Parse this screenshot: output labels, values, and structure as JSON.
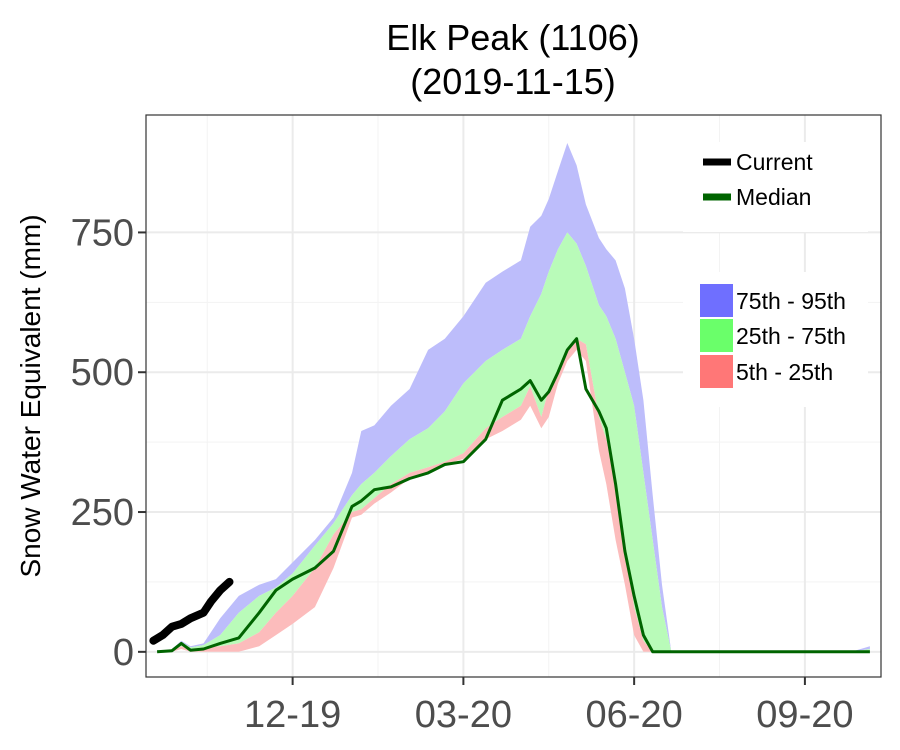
{
  "chart_data": {
    "type": "area",
    "title": "Elk Peak (1106)",
    "subtitle": "(2019-11-15)",
    "ylabel": "Snow Water Equivalent (mm)",
    "xlabel": "",
    "x_start": "2019-10-01",
    "x_end": "2020-10-31",
    "ylim": [
      -45,
      960
    ],
    "yticks": [
      0,
      250,
      500,
      750
    ],
    "xticks": [
      {
        "date": "2019-12-19",
        "label": "12-19"
      },
      {
        "date": "2020-03-20",
        "label": "03-20"
      },
      {
        "date": "2020-06-20",
        "label": "06-20"
      },
      {
        "date": "2020-09-20",
        "label": "09-20"
      }
    ],
    "grid": true,
    "legend": {
      "placement": "top-right",
      "lines": [
        {
          "label": "Current",
          "color": "#000000"
        },
        {
          "label": "Median",
          "color": "#006400"
        }
      ],
      "bands": [
        {
          "label": "75th - 95th",
          "color": "#6f6fff"
        },
        {
          "label": "25th - 75th",
          "color": "#6aff6a"
        },
        {
          "label": "5th - 25th",
          "color": "#ff7777"
        }
      ]
    },
    "colors": {
      "band_75_95": "#bdbdfb",
      "band_25_75": "#b9fbb9",
      "band_5_25": "#fcbcbc",
      "median": "#006400",
      "current": "#000000"
    },
    "x": [
      "2019-10-07",
      "2019-10-15",
      "2019-10-20",
      "2019-10-25",
      "2019-11-01",
      "2019-11-10",
      "2019-11-20",
      "2019-12-01",
      "2019-12-10",
      "2019-12-19",
      "2019-12-31",
      "2020-01-10",
      "2020-01-20",
      "2020-01-25",
      "2020-02-01",
      "2020-02-10",
      "2020-02-20",
      "2020-03-01",
      "2020-03-10",
      "2020-03-20",
      "2020-04-01",
      "2020-04-10",
      "2020-04-20",
      "2020-04-25",
      "2020-05-01",
      "2020-05-05",
      "2020-05-10",
      "2020-05-15",
      "2020-05-20",
      "2020-05-25",
      "2020-06-01",
      "2020-06-05",
      "2020-06-10",
      "2020-06-15",
      "2020-06-20",
      "2020-06-25",
      "2020-06-30",
      "2020-07-05",
      "2020-07-10",
      "2020-07-15",
      "2020-07-20",
      "2020-08-01",
      "2020-09-01",
      "2020-10-01",
      "2020-10-15",
      "2020-10-25"
    ],
    "series": [
      {
        "key": "p95",
        "values": [
          0,
          5,
          20,
          10,
          15,
          60,
          100,
          120,
          130,
          160,
          200,
          240,
          320,
          395,
          405,
          440,
          470,
          540,
          560,
          600,
          660,
          680,
          700,
          760,
          780,
          810,
          860,
          910,
          870,
          800,
          740,
          720,
          700,
          650,
          560,
          450,
          280,
          120,
          0,
          0,
          0,
          0,
          0,
          0,
          0,
          10
        ]
      },
      {
        "key": "p75",
        "values": [
          0,
          5,
          18,
          8,
          12,
          30,
          70,
          100,
          115,
          140,
          190,
          230,
          280,
          300,
          320,
          350,
          380,
          400,
          430,
          480,
          520,
          540,
          560,
          600,
          640,
          680,
          720,
          750,
          730,
          690,
          620,
          600,
          560,
          500,
          440,
          320,
          200,
          80,
          0,
          0,
          0,
          0,
          0,
          0,
          0,
          5
        ]
      },
      {
        "key": "p25",
        "values": [
          0,
          2,
          10,
          5,
          8,
          10,
          15,
          35,
          70,
          100,
          150,
          210,
          250,
          255,
          275,
          300,
          320,
          330,
          340,
          355,
          400,
          420,
          440,
          475,
          420,
          470,
          500,
          540,
          560,
          550,
          420,
          380,
          300,
          200,
          80,
          20,
          0,
          0,
          0,
          0,
          0,
          0,
          0,
          0,
          0,
          0
        ]
      },
      {
        "key": "p5",
        "values": [
          0,
          0,
          5,
          0,
          0,
          0,
          0,
          10,
          30,
          50,
          80,
          150,
          240,
          245,
          265,
          285,
          310,
          320,
          335,
          345,
          380,
          395,
          415,
          440,
          400,
          420,
          480,
          520,
          540,
          520,
          360,
          300,
          200,
          120,
          30,
          0,
          0,
          0,
          0,
          0,
          0,
          0,
          0,
          0,
          0,
          0
        ]
      },
      {
        "name": "Median",
        "key": "median",
        "values": [
          0,
          2,
          15,
          3,
          5,
          15,
          25,
          70,
          110,
          130,
          150,
          180,
          260,
          270,
          290,
          295,
          310,
          320,
          335,
          340,
          380,
          450,
          470,
          485,
          450,
          465,
          500,
          540,
          560,
          470,
          430,
          400,
          300,
          180,
          100,
          30,
          0,
          0,
          0,
          0,
          0,
          0,
          0,
          0,
          0,
          0
        ]
      }
    ],
    "current": {
      "name": "Current",
      "x": [
        "2019-10-05",
        "2019-10-10",
        "2019-10-15",
        "2019-10-20",
        "2019-10-25",
        "2019-11-01",
        "2019-11-05",
        "2019-11-10",
        "2019-11-15"
      ],
      "values": [
        20,
        30,
        45,
        50,
        60,
        70,
        90,
        110,
        125
      ]
    }
  }
}
